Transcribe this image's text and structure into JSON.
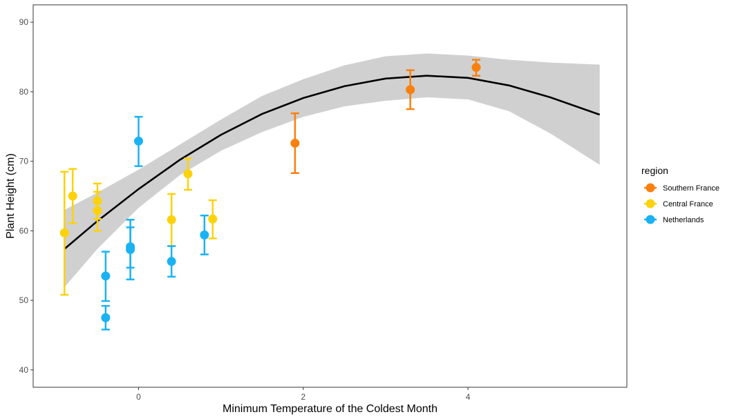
{
  "chart_data": {
    "type": "scatter",
    "xlabel": "Minimum Temperature of the Coldest Month",
    "ylabel": "Plant Height (cm)",
    "xlim": [
      -1.28,
      5.93
    ],
    "ylim": [
      37.5,
      92.5
    ],
    "xticks": [
      0,
      2,
      4
    ],
    "yticks": [
      40,
      50,
      60,
      70,
      80,
      90
    ],
    "grid": false,
    "legend": {
      "title": "region",
      "position": "right",
      "entries": [
        "Southern France",
        "Central France",
        "Netherlands"
      ]
    },
    "series": [
      {
        "name": "Southern France",
        "color": "#F8800F",
        "points": [
          {
            "x": 1.9,
            "y": 72.6,
            "lo": 68.3,
            "hi": 76.9
          },
          {
            "x": 3.3,
            "y": 80.3,
            "lo": 77.5,
            "hi": 83.1
          },
          {
            "x": 4.1,
            "y": 83.5,
            "lo": 82.3,
            "hi": 84.6
          }
        ]
      },
      {
        "name": "Central France",
        "color": "#FCD20C",
        "points": [
          {
            "x": -0.9,
            "y": 59.7,
            "lo": 50.8,
            "hi": 68.5
          },
          {
            "x": -0.8,
            "y": 65.0,
            "lo": 61.1,
            "hi": 68.9
          },
          {
            "x": -0.5,
            "y": 64.3,
            "lo": 61.7,
            "hi": 66.8
          },
          {
            "x": -0.5,
            "y": 62.9,
            "lo": 60.0,
            "hi": 65.6
          },
          {
            "x": 0.4,
            "y": 61.6,
            "lo": 57.8,
            "hi": 65.3
          },
          {
            "x": 0.6,
            "y": 68.2,
            "lo": 65.9,
            "hi": 70.4
          },
          {
            "x": 0.9,
            "y": 61.7,
            "lo": 58.9,
            "hi": 64.4
          }
        ]
      },
      {
        "name": "Netherlands",
        "color": "#1AB2F3",
        "points": [
          {
            "x": -0.4,
            "y": 53.5,
            "lo": 49.9,
            "hi": 57.0
          },
          {
            "x": -0.4,
            "y": 47.5,
            "lo": 45.8,
            "hi": 49.2
          },
          {
            "x": -0.1,
            "y": 57.7,
            "lo": 54.7,
            "hi": 60.5
          },
          {
            "x": -0.1,
            "y": 57.3,
            "lo": 53.0,
            "hi": 61.6
          },
          {
            "x": 0.0,
            "y": 72.9,
            "lo": 69.3,
            "hi": 76.4
          },
          {
            "x": 0.4,
            "y": 55.6,
            "lo": 53.4,
            "hi": 57.8
          },
          {
            "x": 0.8,
            "y": 59.4,
            "lo": 56.6,
            "hi": 62.2
          }
        ]
      }
    ],
    "fit": {
      "type": "quadratic",
      "color": "#000000",
      "band_color": "#D0D0D0",
      "points": [
        {
          "x": -0.9,
          "y": 57.4,
          "lo": 51.9,
          "hi": 63.0
        },
        {
          "x": -0.5,
          "y": 61.4,
          "lo": 57.4,
          "hi": 65.5
        },
        {
          "x": 0.0,
          "y": 66.0,
          "lo": 63.3,
          "hi": 68.8
        },
        {
          "x": 0.5,
          "y": 70.2,
          "lo": 68.0,
          "hi": 72.4
        },
        {
          "x": 1.0,
          "y": 73.8,
          "lo": 71.5,
          "hi": 76.0
        },
        {
          "x": 1.5,
          "y": 76.8,
          "lo": 74.2,
          "hi": 79.4
        },
        {
          "x": 2.0,
          "y": 79.1,
          "lo": 76.4,
          "hi": 81.8
        },
        {
          "x": 2.5,
          "y": 80.8,
          "lo": 77.9,
          "hi": 83.8
        },
        {
          "x": 3.0,
          "y": 81.9,
          "lo": 78.7,
          "hi": 85.1
        },
        {
          "x": 3.5,
          "y": 82.3,
          "lo": 79.2,
          "hi": 85.5
        },
        {
          "x": 4.0,
          "y": 82.0,
          "lo": 78.9,
          "hi": 85.2
        },
        {
          "x": 4.5,
          "y": 80.9,
          "lo": 77.2,
          "hi": 84.6
        },
        {
          "x": 5.0,
          "y": 79.2,
          "lo": 74.0,
          "hi": 84.2
        },
        {
          "x": 5.6,
          "y": 76.7,
          "lo": 69.5,
          "hi": 83.9
        }
      ]
    }
  }
}
